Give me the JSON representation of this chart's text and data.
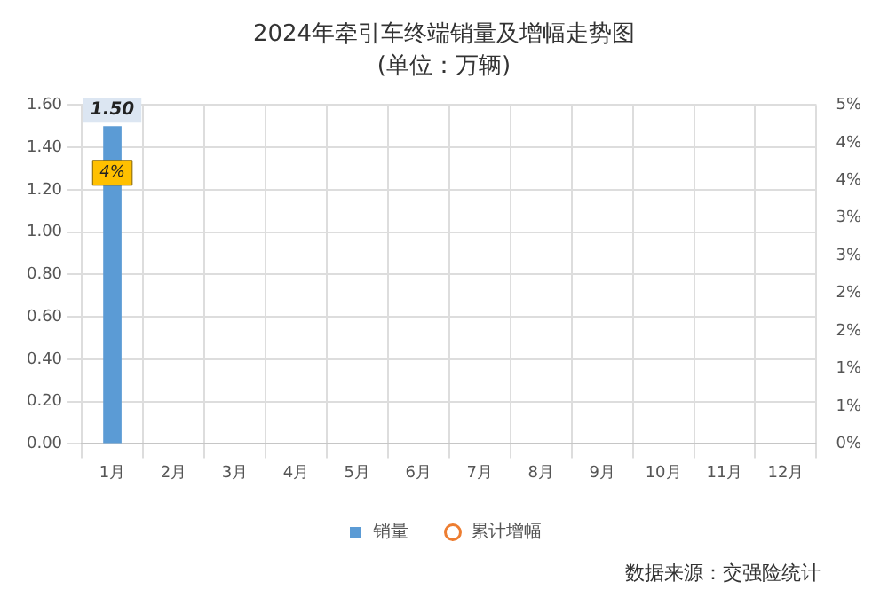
{
  "chart_data": {
    "type": "bar",
    "title": "2024年牵引车终端销量及增幅走势图",
    "subtitle": "(单位：万辆)",
    "categories": [
      "1月",
      "2月",
      "3月",
      "4月",
      "5月",
      "6月",
      "7月",
      "8月",
      "9月",
      "10月",
      "11月",
      "12月"
    ],
    "series": [
      {
        "name": "销量",
        "color": "#5b9bd5",
        "values": [
          1.5,
          null,
          null,
          null,
          null,
          null,
          null,
          null,
          null,
          null,
          null,
          null
        ],
        "value_labels": [
          "1.50",
          null,
          null,
          null,
          null,
          null,
          null,
          null,
          null,
          null,
          null,
          null
        ]
      },
      {
        "name": "累计增幅",
        "type": "line",
        "axis": "y2",
        "color": "#ed7d31",
        "marker": "circle",
        "values": [
          4,
          null,
          null,
          null,
          null,
          null,
          null,
          null,
          null,
          null,
          null,
          null
        ],
        "value_labels": [
          "4%",
          null,
          null,
          null,
          null,
          null,
          null,
          null,
          null,
          null,
          null,
          null
        ]
      }
    ],
    "ylim": [
      0,
      1.6
    ],
    "yticks": [
      "0.00",
      "0.20",
      "0.40",
      "0.60",
      "0.80",
      "1.00",
      "1.20",
      "1.40",
      "1.60"
    ],
    "y2lim": [
      0,
      5
    ],
    "y2ticks": [
      {
        "value": 0,
        "label": "0%"
      },
      {
        "value": 0.556,
        "label": "1%"
      },
      {
        "value": 1.111,
        "label": "1%"
      },
      {
        "value": 1.667,
        "label": "2%"
      },
      {
        "value": 2.222,
        "label": "2%"
      },
      {
        "value": 2.778,
        "label": "3%"
      },
      {
        "value": 3.333,
        "label": "3%"
      },
      {
        "value": 3.889,
        "label": "4%"
      },
      {
        "value": 4.444,
        "label": "4%"
      },
      {
        "value": 5,
        "label": "5%"
      }
    ],
    "grid": true,
    "legend": "bottom",
    "annotations": [
      "数据来源：交强险统计"
    ]
  }
}
